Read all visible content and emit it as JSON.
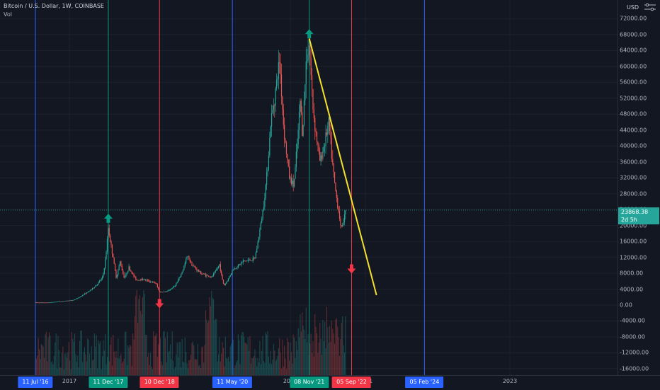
{
  "chart": {
    "symbol_title": "Bitcoin / U.S. Dollar, 1W, COINBASE",
    "volume_label": "Vol",
    "currency": "USD",
    "settings_icon": "gear-sliders-icon",
    "last_price": "23868.38",
    "countdown": "2d 5h"
  },
  "colors": {
    "background": "#131722",
    "grid": "#1e222d",
    "up": "#26a69a",
    "down": "#ef5350",
    "cycle_blue": "#2962ff",
    "cycle_green": "#089981",
    "cycle_red": "#f23645",
    "trendline": "#f5e12c"
  },
  "price_axis": {
    "ticks": [
      "72000.00",
      "68000.00",
      "64000.00",
      "60000.00",
      "56000.00",
      "52000.00",
      "48000.00",
      "44000.00",
      "40000.00",
      "36000.00",
      "32000.00",
      "28000.00",
      "24000.00",
      "20000.00",
      "16000.00",
      "12000.00",
      "8000.00",
      "4000.00",
      "0.00",
      "-4000.00",
      "-8000.00",
      "-12000.00",
      "-16000.00"
    ]
  },
  "time_axis": {
    "year_labels": [
      "2017",
      "2020",
      "2021",
      "2023"
    ],
    "date_badges": [
      {
        "label": "11 Jul '16",
        "color": "#2962ff"
      },
      {
        "label": "11 Dec '17",
        "color": "#089981"
      },
      {
        "label": "10 Dec '18",
        "color": "#f23645"
      },
      {
        "label": "11 May '20",
        "color": "#2962ff"
      },
      {
        "label": "08 Nov '21",
        "color": "#089981"
      },
      {
        "label": "05 Sep '22",
        "color": "#f23645"
      },
      {
        "label": "05 Feb '24",
        "color": "#2962ff"
      }
    ]
  },
  "chart_data": {
    "type": "candlestick",
    "price_path": [
      [
        "2016-07-11",
        650
      ],
      [
        "2016-10-01",
        620
      ],
      [
        "2017-01-01",
        950
      ],
      [
        "2017-04-01",
        1200
      ],
      [
        "2017-06-15",
        2600
      ],
      [
        "2017-09-01",
        4500
      ],
      [
        "2017-11-01",
        7000
      ],
      [
        "2017-12-11",
        19600
      ],
      [
        "2018-01-15",
        12000
      ],
      [
        "2018-02-05",
        7000
      ],
      [
        "2018-03-05",
        11000
      ],
      [
        "2018-04-05",
        6800
      ],
      [
        "2018-05-05",
        9500
      ],
      [
        "2018-07-01",
        6300
      ],
      [
        "2018-08-15",
        6500
      ],
      [
        "2018-11-15",
        5500
      ],
      [
        "2018-12-10",
        3300
      ],
      [
        "2019-02-01",
        3400
      ],
      [
        "2019-04-01",
        5000
      ],
      [
        "2019-06-26",
        12500
      ],
      [
        "2019-08-01",
        10000
      ],
      [
        "2019-10-01",
        8000
      ],
      [
        "2019-12-15",
        7000
      ],
      [
        "2020-02-10",
        10300
      ],
      [
        "2020-03-12",
        4900
      ],
      [
        "2020-05-11",
        8800
      ],
      [
        "2020-07-27",
        11000
      ],
      [
        "2020-10-15",
        11500
      ],
      [
        "2020-11-20",
        18500
      ],
      [
        "2020-12-31",
        29000
      ],
      [
        "2021-02-08",
        46000
      ],
      [
        "2021-04-12",
        62000
      ],
      [
        "2021-05-10",
        45000
      ],
      [
        "2021-06-21",
        32000
      ],
      [
        "2021-07-20",
        30000
      ],
      [
        "2021-09-06",
        52000
      ],
      [
        "2021-09-20",
        43000
      ],
      [
        "2021-10-18",
        62000
      ],
      [
        "2021-11-08",
        66000
      ],
      [
        "2021-12-06",
        49000
      ],
      [
        "2022-01-24",
        36000
      ],
      [
        "2022-03-28",
        46000
      ],
      [
        "2022-05-09",
        30000
      ],
      [
        "2022-06-13",
        22000
      ],
      [
        "2022-06-20",
        19000
      ],
      [
        "2022-07-18",
        22500
      ],
      [
        "2022-07-25",
        23868
      ]
    ],
    "signal_arrows": [
      {
        "direction": "up",
        "date": "2017-12-11",
        "price": 19600,
        "color": "#089981"
      },
      {
        "direction": "up",
        "date": "2021-11-08",
        "price": 66000,
        "color": "#089981"
      },
      {
        "direction": "down",
        "date": "2018-12-10",
        "price": 3300,
        "color": "#f23645"
      },
      {
        "direction": "down",
        "date": "2022-09-05",
        "price": 12000,
        "color": "#f23645"
      }
    ],
    "trendline": [
      [
        "2021-11-08",
        67000
      ],
      [
        "2023-03-01",
        2500
      ]
    ],
    "cycle_lines": [
      {
        "date": "2016-07-11",
        "color": "#2962ff"
      },
      {
        "date": "2017-12-11",
        "color": "#089981"
      },
      {
        "date": "2018-12-10",
        "color": "#f23645"
      },
      {
        "date": "2020-05-11",
        "color": "#2962ff"
      },
      {
        "date": "2021-11-08",
        "color": "#089981"
      },
      {
        "date": "2022-09-05",
        "color": "#f23645"
      },
      {
        "date": "2024-02-05",
        "color": "#2962ff"
      }
    ],
    "y_range": [
      -16000,
      72000
    ]
  }
}
